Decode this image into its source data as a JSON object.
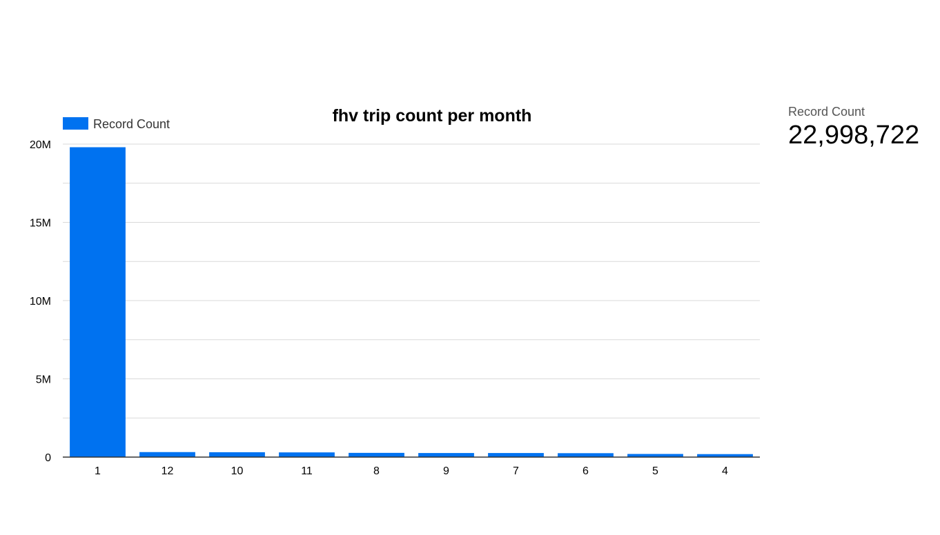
{
  "chart_data": {
    "type": "bar",
    "title": "fhv trip count per month",
    "xlabel": "",
    "ylabel": "",
    "categories": [
      "1",
      "12",
      "10",
      "11",
      "8",
      "9",
      "7",
      "6",
      "5",
      "4"
    ],
    "series": [
      {
        "name": "Record Count",
        "values": [
          19800000,
          320000,
          310000,
          300000,
          270000,
          260000,
          260000,
          250000,
          200000,
          190000
        ]
      }
    ],
    "ylim": [
      0,
      20000000
    ],
    "yticks": [
      0,
      5000000,
      10000000,
      15000000,
      20000000
    ],
    "ytick_labels": [
      "0",
      "5M",
      "10M",
      "15M",
      "20M"
    ],
    "grid": true,
    "legend": "top-left",
    "color": "#0072f0"
  },
  "scorecard": {
    "label": "Record Count",
    "value": "22,998,722"
  }
}
